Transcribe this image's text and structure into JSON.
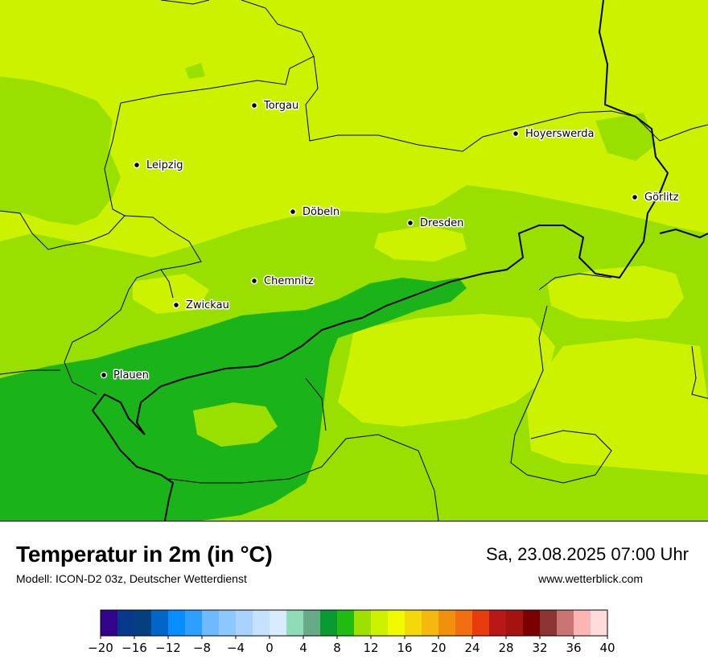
{
  "title": "Temperatur in 2m (in °C)",
  "subtitle": "Modell: ICON-D2 03z, Deutscher Wetterdienst",
  "datetime": "Sa, 23.08.2025 07:00 Uhr",
  "website": "www.wetterblick.com",
  "colors": {
    "temp_8_10": "#1ab31a",
    "temp_10_12": "#99e000",
    "temp_12_14": "#ccf200",
    "border": "#000000"
  },
  "cities": [
    {
      "name": "Torgau"
    },
    {
      "name": "Hoyerswerda"
    },
    {
      "name": "Leipzig"
    },
    {
      "name": "Görlitz"
    },
    {
      "name": "Döbeln"
    },
    {
      "name": "Dresden"
    },
    {
      "name": "Chemnitz"
    },
    {
      "name": "Zwickau"
    },
    {
      "name": "Plauen"
    }
  ],
  "legend": {
    "min": -20,
    "max": 40,
    "step": 2,
    "colors": [
      "#31048b",
      "#07398a",
      "#043f7f",
      "#0266c8",
      "#078dfe",
      "#2e9ffe",
      "#6fbafe",
      "#8cc8fe",
      "#a9d3fe",
      "#c5e1fe",
      "#d8eafe",
      "#8fdcb8",
      "#68aa88",
      "#099b32",
      "#22bb12",
      "#9ee000",
      "#ccf200",
      "#f0fa00",
      "#f3d80b",
      "#f4b80e",
      "#f1900e",
      "#f16f10",
      "#e83c0f",
      "#b7181a",
      "#a51311",
      "#7d0000",
      "#8b3434",
      "#c97373",
      "#fbb6b4",
      "#ffdcdc"
    ],
    "tick_labels": [
      "−20",
      "−16",
      "−12",
      "−8",
      "−4",
      "0",
      "4",
      "8",
      "12",
      "16",
      "20",
      "24",
      "28",
      "32",
      "36",
      "40"
    ]
  }
}
